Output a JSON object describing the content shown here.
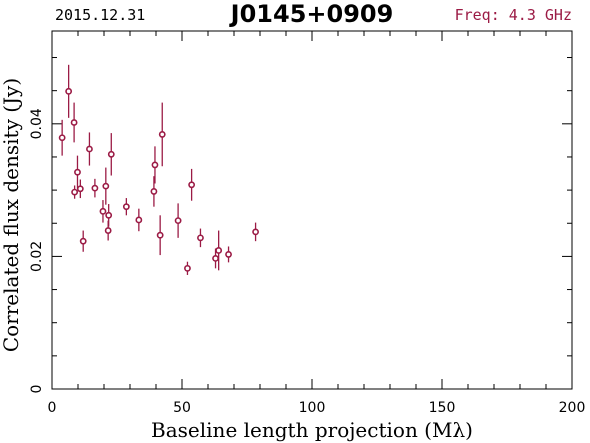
{
  "header": {
    "date": "2015.12.31",
    "source": "J0145+0909",
    "freq": "Freq: 4.3 GHz"
  },
  "colors": {
    "data": "#9b1b45",
    "freq": "#9b1b45",
    "axes": "#000000"
  },
  "chart_data": {
    "type": "scatter",
    "title": "J0145+0909",
    "xlabel": "Baseline length projection (Mλ)",
    "ylabel": "Correlated flux density (Jy)",
    "xlim": [
      0,
      200
    ],
    "ylim": [
      0,
      0.054
    ],
    "xticks": [
      0,
      50,
      100,
      150,
      200
    ],
    "yticks": [
      0,
      0.02,
      0.04
    ],
    "xtick_labels": [
      "0",
      "50",
      "100",
      "150",
      "200"
    ],
    "ytick_labels": [
      "0",
      "0.02",
      "0.04"
    ],
    "grid": false,
    "series": [
      {
        "points": [
          {
            "x": 3.9,
            "y": 0.0379,
            "err": 0.0027
          },
          {
            "x": 6.4,
            "y": 0.0449,
            "err": 0.004
          },
          {
            "x": 8.5,
            "y": 0.0402,
            "err": 0.003
          },
          {
            "x": 8.7,
            "y": 0.0297,
            "err": 0.001
          },
          {
            "x": 9.8,
            "y": 0.0327,
            "err": 0.0025
          },
          {
            "x": 10.9,
            "y": 0.0302,
            "err": 0.0014
          },
          {
            "x": 12.0,
            "y": 0.0223,
            "err": 0.0016
          },
          {
            "x": 14.4,
            "y": 0.0362,
            "err": 0.0025
          },
          {
            "x": 16.5,
            "y": 0.0303,
            "err": 0.0014
          },
          {
            "x": 19.6,
            "y": 0.0268,
            "err": 0.0017
          },
          {
            "x": 20.7,
            "y": 0.0306,
            "err": 0.0028
          },
          {
            "x": 21.6,
            "y": 0.0239,
            "err": 0.0015
          },
          {
            "x": 21.8,
            "y": 0.0262,
            "err": 0.0017
          },
          {
            "x": 22.8,
            "y": 0.0354,
            "err": 0.0032
          },
          {
            "x": 28.6,
            "y": 0.0275,
            "err": 0.0013
          },
          {
            "x": 33.4,
            "y": 0.0255,
            "err": 0.0017
          },
          {
            "x": 39.2,
            "y": 0.0298,
            "err": 0.0023
          },
          {
            "x": 39.6,
            "y": 0.0338,
            "err": 0.0028
          },
          {
            "x": 41.6,
            "y": 0.0232,
            "err": 0.003
          },
          {
            "x": 42.4,
            "y": 0.0384,
            "err": 0.0048
          },
          {
            "x": 48.5,
            "y": 0.0254,
            "err": 0.0026
          },
          {
            "x": 52.1,
            "y": 0.0182,
            "err": 0.001
          },
          {
            "x": 53.7,
            "y": 0.0308,
            "err": 0.0024
          },
          {
            "x": 57.1,
            "y": 0.0228,
            "err": 0.0014
          },
          {
            "x": 62.9,
            "y": 0.0197,
            "err": 0.0015
          },
          {
            "x": 64.1,
            "y": 0.0209,
            "err": 0.003
          },
          {
            "x": 67.9,
            "y": 0.0203,
            "err": 0.0012
          },
          {
            "x": 78.3,
            "y": 0.0237,
            "err": 0.0014
          }
        ]
      }
    ]
  }
}
